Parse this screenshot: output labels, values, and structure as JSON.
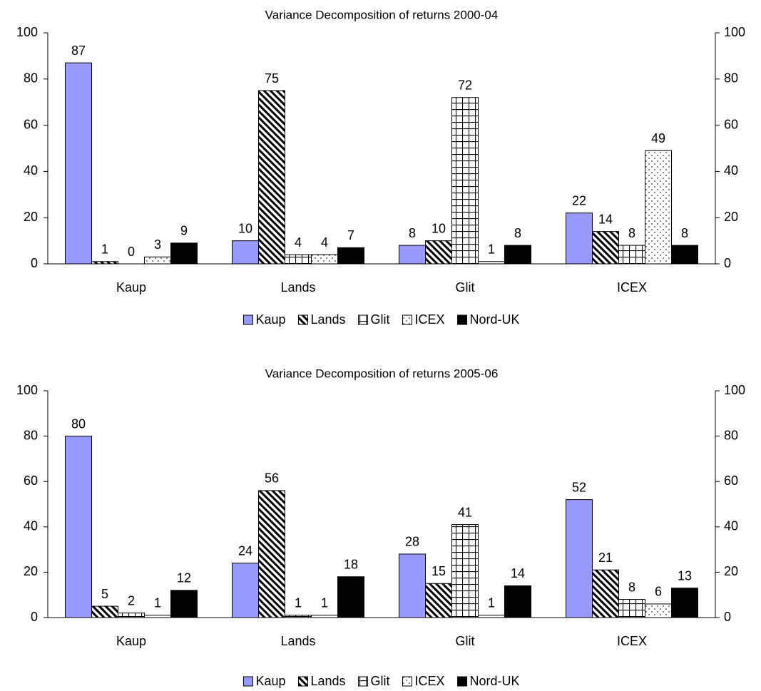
{
  "chart_data": [
    {
      "type": "bar",
      "title": "Variance Decomposition of returns 2000-04",
      "categories": [
        "Kaup",
        "Lands",
        "Glit",
        "ICEX"
      ],
      "series": [
        {
          "name": "Kaup",
          "color": "#9999ff",
          "pattern": "solid",
          "values": [
            87,
            10,
            8,
            22
          ]
        },
        {
          "name": "Lands",
          "color": "#000000",
          "pattern": "diagonal",
          "values": [
            1,
            75,
            10,
            14
          ]
        },
        {
          "name": "Glit",
          "color": "#000000",
          "pattern": "grid",
          "values": [
            0,
            4,
            72,
            8
          ]
        },
        {
          "name": "ICEX",
          "color": "#000000",
          "pattern": "dots",
          "values": [
            3,
            4,
            1,
            49
          ]
        },
        {
          "name": "Nord-UK",
          "color": "#000000",
          "pattern": "solid",
          "values": [
            9,
            7,
            8,
            8
          ]
        }
      ],
      "ylim": [
        0,
        100
      ],
      "yticks": [
        0,
        20,
        40,
        60,
        80,
        100
      ],
      "y2lim": [
        0,
        100
      ],
      "y2ticks": [
        0,
        20,
        40,
        60,
        80,
        100
      ],
      "legend": "bottom"
    },
    {
      "type": "bar",
      "title": "Variance Decomposition of returns 2005-06",
      "categories": [
        "Kaup",
        "Lands",
        "Glit",
        "ICEX"
      ],
      "series": [
        {
          "name": "Kaup",
          "color": "#9999ff",
          "pattern": "solid",
          "values": [
            80,
            24,
            28,
            52
          ]
        },
        {
          "name": "Lands",
          "color": "#000000",
          "pattern": "diagonal",
          "values": [
            5,
            56,
            15,
            21
          ]
        },
        {
          "name": "Glit",
          "color": "#000000",
          "pattern": "grid",
          "values": [
            2,
            1,
            41,
            8
          ]
        },
        {
          "name": "ICEX",
          "color": "#000000",
          "pattern": "dots",
          "values": [
            1,
            1,
            1,
            6
          ]
        },
        {
          "name": "Nord-UK",
          "color": "#000000",
          "pattern": "solid",
          "values": [
            12,
            18,
            14,
            13
          ]
        }
      ],
      "ylim": [
        0,
        100
      ],
      "yticks": [
        0,
        20,
        40,
        60,
        80,
        100
      ],
      "y2lim": [
        0,
        100
      ],
      "y2ticks": [
        0,
        20,
        40,
        60,
        80,
        100
      ],
      "legend": "bottom"
    }
  ]
}
